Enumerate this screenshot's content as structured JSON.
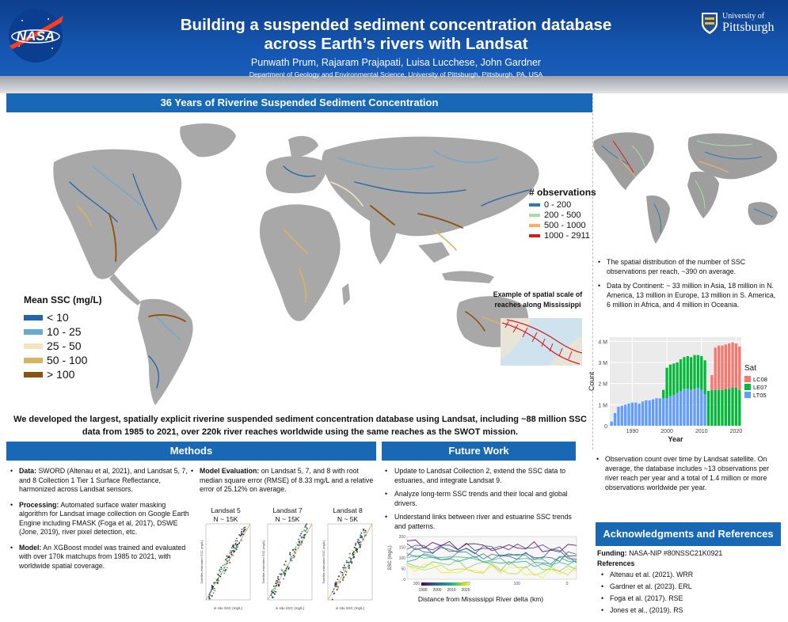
{
  "header": {
    "title_line1": "Building a suspended sediment concentration database",
    "title_line2": "across Earth’s rivers with Landsat",
    "authors": "Punwath Prum, Rajaram Prajapati, Luisa Lucchese, John Gardner",
    "department": "Department of Geology and Environmental Science, University of Pittsburgh, Pittsburgh, PA, USA",
    "nasa_logo_text": "NASA",
    "pitt_logo_line1": "University of",
    "pitt_logo_line2": "Pittsburgh"
  },
  "main": {
    "heading": "36 Years of Riverine Suspended Sediment Concentration",
    "obs_legend": {
      "title": "# observations",
      "items": [
        {
          "label": "0 - 200",
          "color": "#2c7bb6"
        },
        {
          "label": "200 - 500",
          "color": "#abdda4"
        },
        {
          "label": "500 - 1000",
          "color": "#fdae61"
        },
        {
          "label": "1000 - 2911",
          "color": "#d7191c"
        }
      ]
    },
    "ssc_legend": {
      "title": "Mean SSC (mg/L)",
      "items": [
        {
          "label": "< 10",
          "color": "#2166ac"
        },
        {
          "label": "10 - 25",
          "color": "#67a9cf"
        },
        {
          "label": "25 - 50",
          "color": "#f1e4c2"
        },
        {
          "label": "50 - 100",
          "color": "#d8b365"
        },
        {
          "label": "> 100",
          "color": "#8c510a"
        }
      ]
    },
    "inset_label": "Example of spatial scale of reaches along Mississippi",
    "summary": "We developed the largest, spatially explicit riverine suspended sediment concentration database using Landsat, including ~88 million SSC data from 1985 to 2021, over 220k river reaches worldwide using the same reaches as the SWOT mission."
  },
  "right": {
    "bullet1": "The spatial distribution of the number of SSC observations per reach,  ~390 on average.",
    "bullet2": "Data by Continent:  ~ 33 million in Asia, 18 million in N. America, 13 million in Europe, 13 million in S. America, 6 million in Africa, and 4 million in Oceania.",
    "bullet3": "Observation count over time by Landsat satellite. On average, the database includes ~13 observations per river reach per year and a total of 1.4 million or more observations worldwide per year."
  },
  "methods": {
    "heading": "Methods",
    "data_label": "Data:",
    "data_text": " SWORD (Altenau et al, 2021), and Landsat 5, 7, and 8 Collection 1 Tier 1 Surface Reflectance, harmonized across Landsat sensors.",
    "processing_label": "Processing:",
    "processing_text": " Automated surface water masking algorithm for Landsat image collection on Google Earth Engine including FMASK (Foga et al, 2017), DSWE (Jone, 2019), river pixel detection, etc.",
    "model_label": "Model:",
    "model_text": " An XGBoost model was trained and evaluated with over 170k matchups from 1985 to 2021, with worldwide spatial coverage.",
    "eval_label": "Model Evaluation:",
    "eval_text": " on Landsat 5, 7,  and 8 with root median square error (RMSE) of 8.33 mg/L and a relative error of 25.12% on average.",
    "scatter_plots": [
      {
        "sat": "Landsat 5",
        "n": "N ~ 15K"
      },
      {
        "sat": "Landsat 7",
        "n": "N ~ 15K"
      },
      {
        "sat": "Landsat 8",
        "n": "N ~ 5K"
      }
    ],
    "scatter_ylabel": "Satellite-estimated SSC (mg/L)",
    "scatter_xlabel": "in situ SSC (mg/L)"
  },
  "future": {
    "heading": "Future Work",
    "items": [
      "Update to Landsat Collection 2, extend the SSC data to estuaries, and integrate Landsat 9.",
      "Analyze long-term SSC trends and their local and global drivers.",
      "Understand links between river and estuarine SSC trends and patterns."
    ],
    "chart_xlabel": "Distance from Mississippi River delta (km)",
    "chart_ylabel": "SSC (mg/L)",
    "chart_xticks": [
      "300",
      "200",
      "100",
      "0"
    ],
    "chart_yticks": [
      "200",
      "150",
      "100",
      "50",
      "0"
    ],
    "colorbar_ticks": [
      "1990",
      "2000",
      "2010",
      "2020"
    ]
  },
  "ack": {
    "heading": "Acknowledgments and References",
    "funding_label": "Funding:",
    "funding_text": " NASA-NIP #80NSSC21K0921",
    "refs_title": "References",
    "refs": [
      "Altenau et al. (2021). WRR",
      "Gardner et al. (2023). ERL",
      "Foga et al. (2017). RSE",
      "Jones et al., (2019). RS"
    ]
  },
  "chart_data": {
    "type": "bar",
    "xlabel": "Year",
    "ylabel": "Count",
    "x": [
      1984,
      1985,
      1986,
      1987,
      1988,
      1989,
      1990,
      1991,
      1992,
      1993,
      1994,
      1995,
      1996,
      1997,
      1998,
      1999,
      2000,
      2001,
      2002,
      2003,
      2004,
      2005,
      2006,
      2007,
      2008,
      2009,
      2010,
      2011,
      2012,
      2013,
      2014,
      2015,
      2016,
      2017,
      2018,
      2019,
      2020,
      2021
    ],
    "xticks": [
      1990,
      2000,
      2010,
      2020
    ],
    "yticks": [
      "0",
      "1 M",
      "2 M",
      "3 M",
      "4 M"
    ],
    "ylim": [
      0,
      4200000
    ],
    "legend_title": "Sat",
    "series": [
      {
        "name": "LT05",
        "color": "#619cff",
        "values": [
          200000,
          600000,
          900000,
          950000,
          1000000,
          1050000,
          1100000,
          1100000,
          1050000,
          1150000,
          1200000,
          1200000,
          1250000,
          1300000,
          1300000,
          1300000,
          1300000,
          1400000,
          1450000,
          1550000,
          1650000,
          1750000,
          1750000,
          1700000,
          1750000,
          1800000,
          1700000,
          1500000,
          0,
          0,
          0,
          0,
          0,
          0,
          0,
          0,
          0,
          0
        ]
      },
      {
        "name": "LE07",
        "color": "#00ba38",
        "values": [
          0,
          0,
          0,
          0,
          0,
          0,
          0,
          0,
          0,
          0,
          0,
          0,
          0,
          0,
          0,
          400000,
          1450000,
          1500000,
          1500000,
          1450000,
          1500000,
          1500000,
          1550000,
          1550000,
          1600000,
          1550000,
          1600000,
          1600000,
          1650000,
          1700000,
          1700000,
          1700000,
          1700000,
          1750000,
          1750000,
          1800000,
          1800000,
          1700000
        ]
      },
      {
        "name": "LC08",
        "color": "#f8766d",
        "values": [
          0,
          0,
          0,
          0,
          0,
          0,
          0,
          0,
          0,
          0,
          0,
          0,
          0,
          0,
          0,
          0,
          0,
          0,
          0,
          0,
          0,
          0,
          0,
          0,
          0,
          0,
          0,
          0,
          0,
          700000,
          2000000,
          2100000,
          2100000,
          2100000,
          2150000,
          2150000,
          2100000,
          2050000
        ]
      }
    ]
  }
}
